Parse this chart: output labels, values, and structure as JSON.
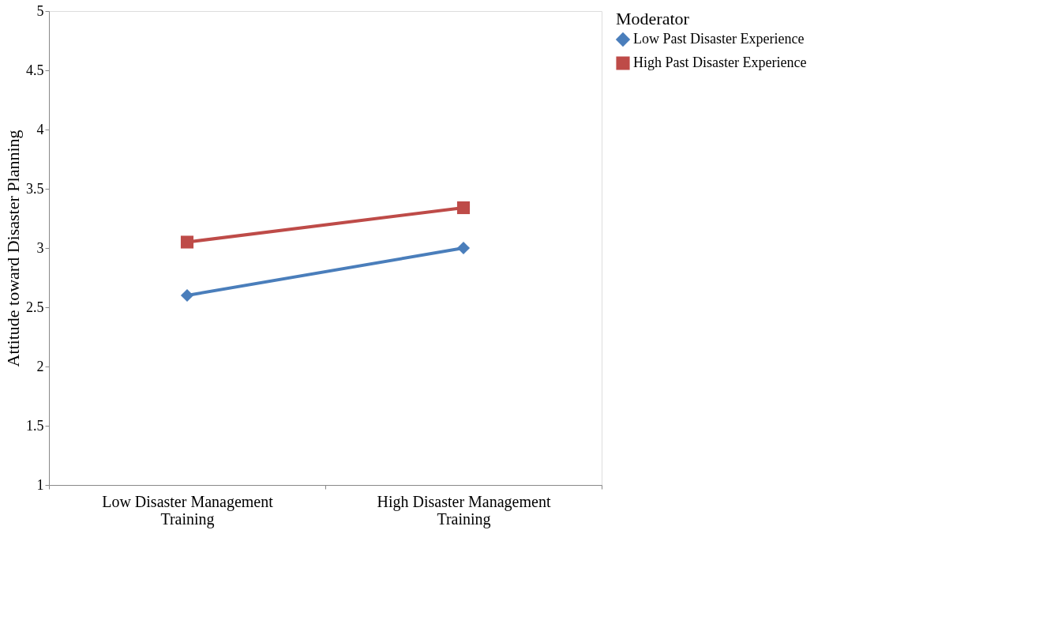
{
  "chart_data": {
    "type": "line",
    "ylabel": "Attitude toward Disaster Planning",
    "legend_title": "Moderator",
    "categories": [
      "Low Disaster Management Training",
      "High Disaster Management Training"
    ],
    "series": [
      {
        "name": "Low Past Disaster Experience",
        "color": "#4a7ebb",
        "marker": "diamond",
        "values": [
          2.6,
          3.0
        ]
      },
      {
        "name": "High Past Disaster Experience",
        "color": "#be4b48",
        "marker": "square",
        "values": [
          3.05,
          3.34
        ]
      }
    ],
    "ylim": [
      1,
      5
    ],
    "yticks": [
      1,
      1.5,
      2,
      2.5,
      3,
      3.5,
      4,
      4.5,
      5
    ],
    "grid": false,
    "legend": "right",
    "line_style": "solid"
  }
}
